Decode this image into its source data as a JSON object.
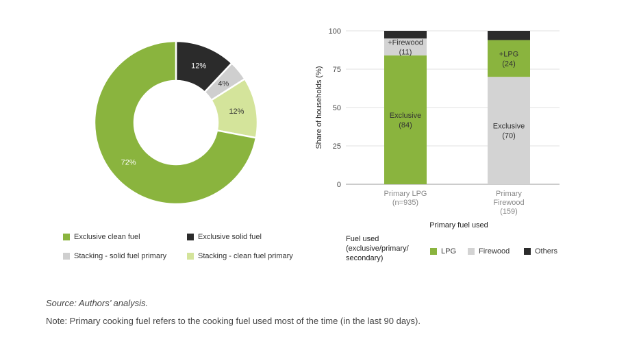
{
  "chart_data": [
    {
      "type": "pie",
      "variant": "donut",
      "slices": [
        {
          "name": "Exclusive solid fuel",
          "value": 12,
          "label": "12%",
          "color": "#2b2b2b",
          "label_color": "#ffffff"
        },
        {
          "name": "Stacking - solid fuel primary",
          "value": 4,
          "label": "4%",
          "color": "#cfcfcf",
          "label_color": "#333333"
        },
        {
          "name": "Stacking - clean fuel primary",
          "value": 12,
          "label": "12%",
          "color": "#d4e49b",
          "label_color": "#333333"
        },
        {
          "name": "Exclusive clean fuel",
          "value": 72,
          "label": "72%",
          "color": "#8ab43e",
          "label_color": "#ffffff"
        }
      ],
      "legend": [
        {
          "name": "Exclusive clean fuel",
          "color": "#8ab43e"
        },
        {
          "name": "Exclusive solid fuel",
          "color": "#2b2b2b"
        },
        {
          "name": "Stacking - solid fuel primary",
          "color": "#cfcfcf"
        },
        {
          "name": "Stacking - clean fuel primary",
          "color": "#d4e49b"
        }
      ],
      "legend_position": "bottom"
    },
    {
      "type": "bar",
      "stacked": true,
      "categories": [
        [
          "Primary LPG",
          "(n=935)"
        ],
        [
          "Primary",
          "Firewood",
          "(159)"
        ]
      ],
      "series": [
        {
          "name": "LPG",
          "color": "#8ab43e",
          "values": [
            84,
            24
          ],
          "labels": [
            [
              "Exclusive",
              "(84)"
            ],
            [
              "+LPG",
              "(24)"
            ]
          ]
        },
        {
          "name": "Firewood",
          "color": "#d3d3d3",
          "values": [
            11,
            70
          ],
          "labels": [
            [
              "+Firewood",
              "(11)"
            ],
            [
              "Exclusive",
              "(70)"
            ]
          ]
        },
        {
          "name": "Others",
          "color": "#2b2b2b",
          "values": [
            5,
            6
          ],
          "labels": [
            [],
            []
          ]
        }
      ],
      "order": [
        [
          0,
          1,
          2
        ],
        [
          1,
          0,
          2
        ]
      ],
      "ylabel": "Share of households (%)",
      "xlabel": "Primary fuel used",
      "yticks": [
        0,
        25,
        50,
        75,
        100
      ],
      "ylim": [
        0,
        100
      ],
      "grid": true,
      "legend_title": "Fuel used (exclusive/primary/ secondary)",
      "legend_position": "bottom"
    }
  ],
  "footer": {
    "source": "Source: Authors’ analysis.",
    "note": "Note: Primary cooking fuel refers to the cooking fuel used most of the time (in the last 90 days)."
  }
}
